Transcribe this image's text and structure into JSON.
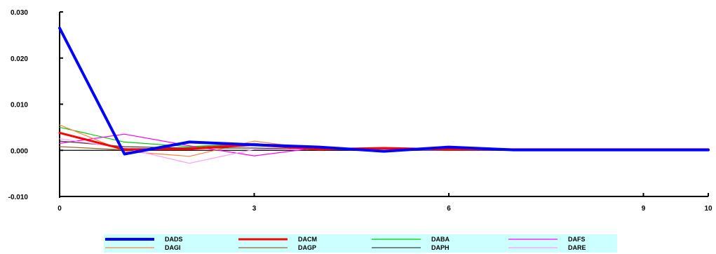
{
  "chart_data": {
    "type": "line",
    "title": "",
    "xlabel": "",
    "ylabel": "",
    "xlim": [
      0,
      10
    ],
    "ylim": [
      -0.01,
      0.03
    ],
    "x_ticks": [
      0,
      3,
      6,
      9,
      10
    ],
    "x_tick_labels": [
      "0",
      "3",
      "6",
      "9",
      "10"
    ],
    "y_ticks": [
      0.03,
      0.02,
      0.01,
      0.0,
      -0.01
    ],
    "y_tick_labels": [
      "0.030",
      "0.020",
      "0.010",
      "0.000",
      "-0.010"
    ],
    "grid": false,
    "legend_position": "bottom",
    "legend_background": "#ccffff",
    "x": [
      0,
      1,
      2,
      3,
      4,
      5,
      6,
      7,
      8,
      9,
      10
    ],
    "series": [
      {
        "name": "DADS",
        "color": "#0000ff",
        "width": 4,
        "values": [
          0.0265,
          -0.0008,
          0.0018,
          0.0012,
          0.0007,
          -0.0002,
          0.0007,
          0.0001,
          0.0001,
          0.0001,
          0.0001
        ]
      },
      {
        "name": "DACM",
        "color": "#ff0000",
        "width": 3,
        "values": [
          0.0038,
          0.0002,
          0.0003,
          0.0012,
          0.0002,
          0.0005,
          0.0002,
          0.0002,
          0.0002,
          0.0002,
          0.0002
        ]
      },
      {
        "name": "DABA",
        "color": "#00cc00",
        "width": 1.2,
        "values": [
          0.005,
          0.0018,
          0.0008,
          0.0015,
          0.0003,
          0.0003,
          0.0003,
          0.0002,
          0.0002,
          0.0002,
          0.0002
        ]
      },
      {
        "name": "DAFS",
        "color": "#ff00ff",
        "width": 1.2,
        "values": [
          0.0015,
          0.0035,
          0.001,
          -0.0012,
          0.0006,
          0.0001,
          0.0001,
          0.0001,
          0.0001,
          0.0001,
          0.0001
        ]
      },
      {
        "name": "DAGI",
        "color": "#ff8040",
        "width": 1.2,
        "values": [
          0.0055,
          -0.0002,
          -0.0013,
          0.002,
          0.0002,
          0.0002,
          0.0001,
          0.0001,
          0.0001,
          0.0001,
          0.0001
        ]
      },
      {
        "name": "DAGP",
        "color": "#996633",
        "width": 1.2,
        "values": [
          0.0008,
          0.0001,
          0.0006,
          0.0015,
          0.0003,
          0.0002,
          0.0001,
          0.0001,
          0.0001,
          0.0001,
          0.0001
        ]
      },
      {
        "name": "DAPH",
        "color": "#404040",
        "width": 1.2,
        "values": [
          0.002,
          0.0008,
          0.0005,
          0.0005,
          0.0002,
          0.0001,
          0.0001,
          0.0001,
          0.0001,
          0.0001,
          0.0001
        ]
      },
      {
        "name": "DARE",
        "color": "#ff99ff",
        "width": 1.2,
        "values": [
          0.0025,
          0.0005,
          -0.0028,
          0.0002,
          0.0003,
          0.0001,
          0.0001,
          0.0001,
          0.0001,
          0.0001,
          0.0001
        ]
      }
    ]
  }
}
